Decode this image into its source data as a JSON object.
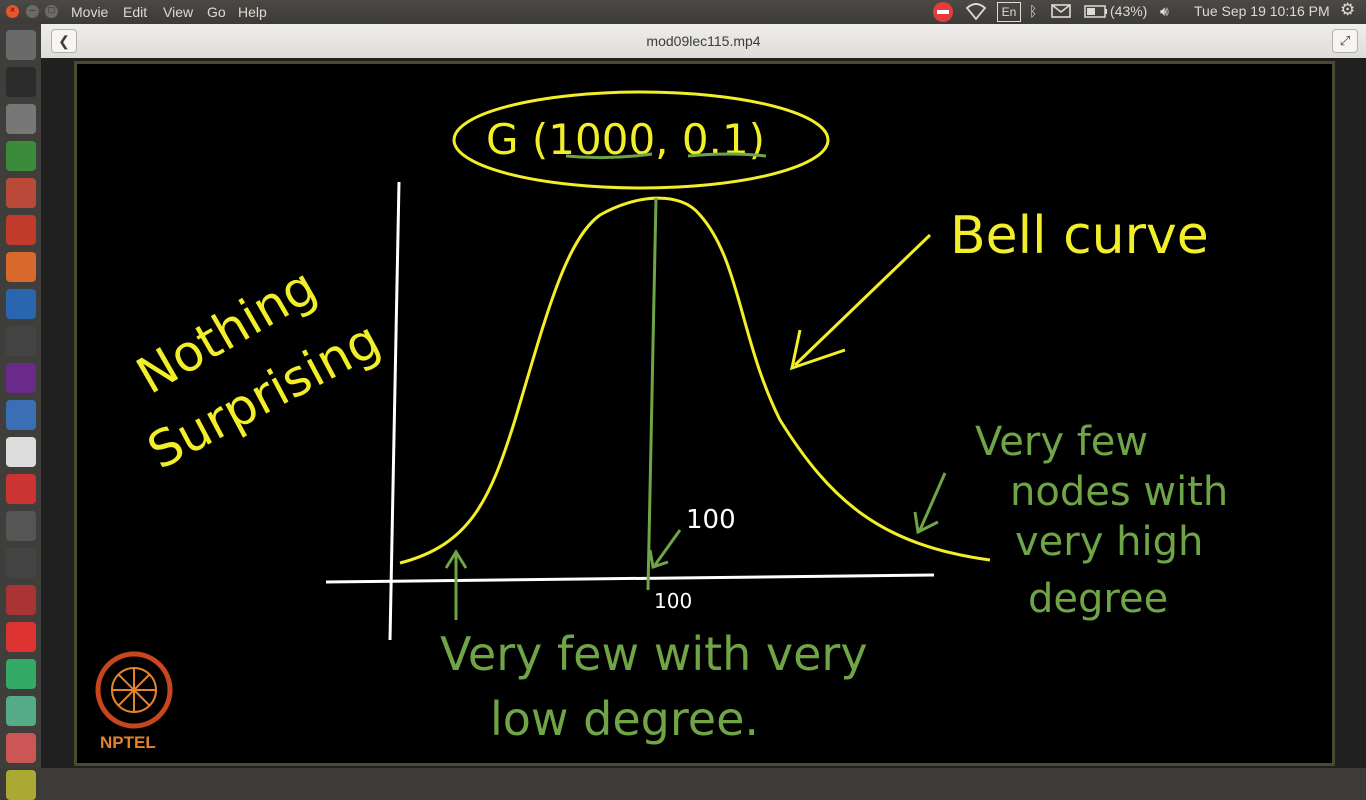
{
  "menubar": {
    "items": [
      "Movie",
      "Edit",
      "View",
      "Go",
      "Help"
    ],
    "keyboard_layout": "En",
    "battery": "(43%)",
    "datetime": "Tue Sep 19 10:16 PM"
  },
  "launcher": {
    "icons": [
      "dash-icon",
      "terminal-icon",
      "calculator-icon",
      "chrome-icon",
      "files-icon",
      "evince-icon",
      "document-icon",
      "r-icon",
      "video-icon",
      "media-icon",
      "writer-icon",
      "text-editor-icon",
      "gmail-icon",
      "sublime-icon",
      "ipython-icon",
      "settings-icon",
      "opera-icon",
      "gp-icon",
      "stack-icon",
      "presentation-icon",
      "more-icon"
    ]
  },
  "window": {
    "title": "mod09lec115.mp4"
  },
  "board": {
    "title": "G (1000, 0.1)",
    "bell_label": "Bell curve",
    "left_note_line1": "Nothing",
    "left_note_line2": "Surprising",
    "peak_label": "100",
    "axis_label": "100",
    "right_note": [
      "Very few",
      "nodes with",
      "very high",
      "degree"
    ],
    "bottom_note": [
      "Very few with very",
      "low degree."
    ],
    "logo_text": "NPTEL"
  },
  "colors": {
    "yellow": "#f2ef2a",
    "green": "#6fa546",
    "white": "#ffffff",
    "board_bg": "#000000"
  }
}
